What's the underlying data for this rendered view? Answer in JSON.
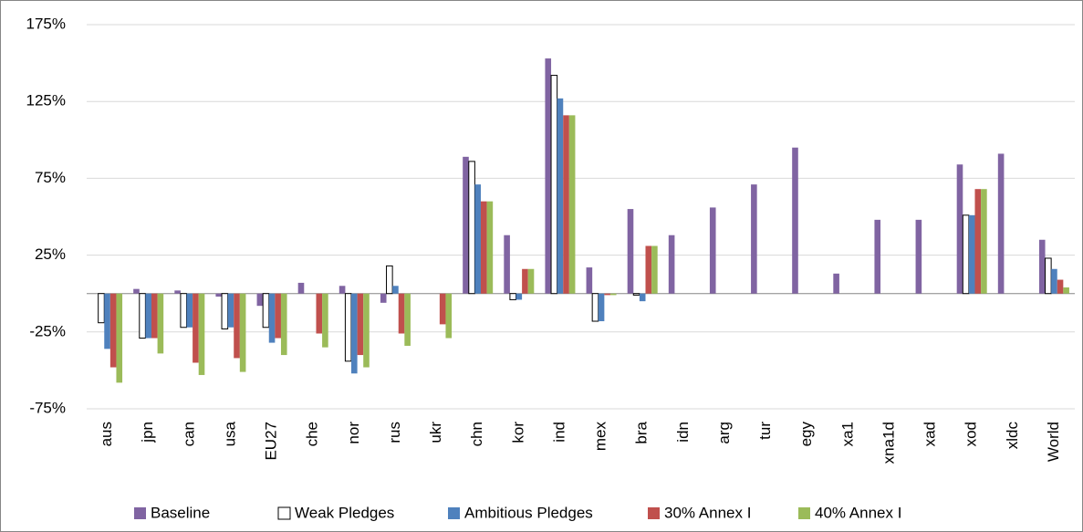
{
  "chart_data": {
    "type": "bar",
    "categories": [
      "aus",
      "jpn",
      "can",
      "usa",
      "EU27",
      "che",
      "nor",
      "rus",
      "ukr",
      "chn",
      "kor",
      "ind",
      "mex",
      "bra",
      "idn",
      "arg",
      "tur",
      "egy",
      "xa1",
      "xna1d",
      "xad",
      "xod",
      "xldc",
      "World"
    ],
    "series": [
      {
        "name": "Baseline",
        "color": "#8064a2",
        "values": [
          null,
          3,
          2,
          -2,
          -8,
          7,
          5,
          -6,
          null,
          89,
          38,
          153,
          17,
          55,
          38,
          56,
          71,
          95,
          13,
          48,
          48,
          84,
          91,
          35
        ]
      },
      {
        "name": "Weak Pledges",
        "color": "#ffffff",
        "values": [
          -19,
          -29,
          -22,
          -23,
          -22,
          null,
          -44,
          18,
          null,
          86,
          -4,
          142,
          -18,
          -1,
          null,
          null,
          null,
          null,
          null,
          null,
          null,
          51,
          null,
          23
        ]
      },
      {
        "name": "Ambitious Pledges",
        "color": "#4f81bd",
        "values": [
          -36,
          -29,
          -22,
          -22,
          -32,
          null,
          -52,
          5,
          null,
          71,
          -4,
          127,
          -18,
          -5,
          null,
          null,
          null,
          null,
          null,
          null,
          null,
          51,
          null,
          16
        ]
      },
      {
        "name": "30% Annex I",
        "color": "#c0504d",
        "values": [
          -48,
          -29,
          -45,
          -42,
          -29,
          -26,
          -40,
          -26,
          -20,
          60,
          16,
          116,
          -1,
          31,
          null,
          null,
          null,
          null,
          null,
          null,
          null,
          68,
          null,
          9
        ]
      },
      {
        "name": "40% Annex I",
        "color": "#9bbb59",
        "values": [
          -58,
          -39,
          -53,
          -51,
          -40,
          -35,
          -48,
          -34,
          -29,
          60,
          16,
          116,
          -1,
          31,
          null,
          null,
          null,
          null,
          null,
          null,
          null,
          68,
          null,
          4
        ]
      }
    ],
    "ylim": [
      -75,
      175
    ],
    "yticks": [
      {
        "value": -75,
        "label": "-75%"
      },
      {
        "value": -25,
        "label": "-25%"
      },
      {
        "value": 25,
        "label": "25%"
      },
      {
        "value": 75,
        "label": "75%"
      },
      {
        "value": 125,
        "label": "125%"
      },
      {
        "value": 175,
        "label": "175%"
      }
    ],
    "grid": true
  }
}
